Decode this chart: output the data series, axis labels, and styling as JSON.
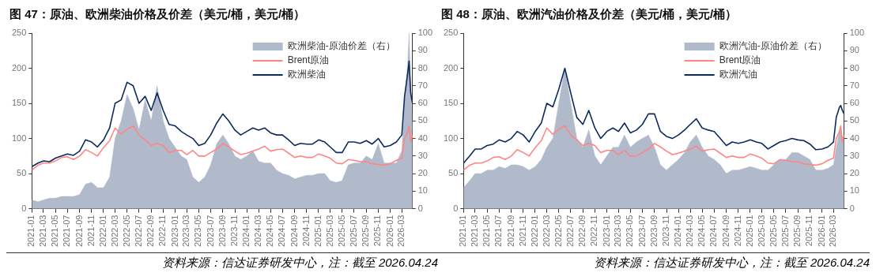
{
  "chart_data": [
    {
      "type": "line",
      "title": "图 47：原油、欧洲柴油价格及价差（美元/桶，美元/桶）",
      "annotations": [
        "资料来源：信达证券研发中心，注：截至 2026.04.24"
      ],
      "x": [
        "2021-01",
        "2021-02",
        "2021-03",
        "2021-04",
        "2021-05",
        "2021-06",
        "2021-07",
        "2021-08",
        "2021-09",
        "2021-10",
        "2021-11",
        "2021-12",
        "2022-01",
        "2022-02",
        "2022-03",
        "2022-04",
        "2022-05",
        "2022-06",
        "2022-07",
        "2022-08",
        "2022-09",
        "2022-10",
        "2022-11",
        "2022-12",
        "2023-01",
        "2023-02",
        "2023-03",
        "2023-04",
        "2023-05",
        "2023-06",
        "2023-07",
        "2023-08",
        "2023-09",
        "2023-10",
        "2023-11",
        "2023-12",
        "2024-01",
        "2024-02",
        "2024-03",
        "2024-04",
        "2024-05",
        "2024-06",
        "2024-07",
        "2024-08",
        "2024-09",
        "2024-10",
        "2024-11",
        "2024-12",
        "2025-01",
        "2025-02",
        "2025-03",
        "2025-04",
        "2025-05",
        "2025-06",
        "2025-07",
        "2025-08",
        "2025-09",
        "2025-10",
        "2025-11",
        "2025-12",
        "2026-01",
        "2026-02",
        "2026-03",
        "2026-03-15",
        "2026-04-01",
        "2026-04-07",
        "2026-04-15",
        "2026-04-24"
      ],
      "series": [
        {
          "name": "欧洲柴油-原油价差（右）",
          "type": "area",
          "axis": "y2",
          "color": "#b1bacb",
          "values": [
            5,
            4,
            5,
            6,
            6,
            7,
            7,
            7,
            8,
            14,
            15,
            12,
            12,
            18,
            40,
            50,
            65,
            57,
            45,
            62,
            50,
            70,
            50,
            40,
            35,
            30,
            28,
            18,
            15,
            18,
            25,
            37,
            42,
            37,
            30,
            28,
            30,
            33,
            27,
            26,
            26,
            22,
            20,
            19,
            17,
            18,
            19,
            19,
            20,
            20,
            16,
            15,
            16,
            25,
            26,
            26,
            30,
            28,
            37,
            26,
            26,
            26,
            33,
            60,
            85,
            100,
            70,
            45
          ]
        },
        {
          "name": "Brent原油",
          "type": "line",
          "color": "#ff8585",
          "values": [
            55,
            62,
            65,
            65,
            68,
            73,
            74,
            70,
            75,
            84,
            80,
            75,
            87,
            97,
            115,
            106,
            113,
            118,
            105,
            98,
            90,
            93,
            90,
            80,
            83,
            83,
            77,
            83,
            75,
            75,
            80,
            85,
            93,
            88,
            82,
            77,
            79,
            82,
            85,
            89,
            82,
            84,
            85,
            79,
            73,
            75,
            73,
            73,
            78,
            75,
            72,
            65,
            64,
            70,
            69,
            67,
            67,
            64,
            63,
            62,
            64,
            69,
            72,
            100,
            110,
            118,
            95,
            105
          ]
        },
        {
          "name": "欧洲柴油",
          "type": "line",
          "color": "#0d2a5e",
          "values": [
            60,
            65,
            68,
            67,
            72,
            75,
            78,
            76,
            82,
            98,
            95,
            88,
            98,
            115,
            150,
            155,
            180,
            175,
            150,
            160,
            140,
            165,
            140,
            120,
            118,
            110,
            105,
            100,
            90,
            93,
            105,
            122,
            135,
            125,
            112,
            105,
            110,
            115,
            112,
            115,
            108,
            105,
            105,
            98,
            90,
            93,
            92,
            92,
            98,
            95,
            88,
            80,
            80,
            95,
            95,
            93,
            97,
            92,
            100,
            88,
            90,
            95,
            105,
            160,
            195,
            210,
            165,
            150
          ]
        }
      ],
      "xlim": [
        "2021-01-01",
        "2026-04-24"
      ],
      "xticks": [
        "2021-01",
        "2021-03",
        "2021-05",
        "2021-07",
        "2021-09",
        "2021-11",
        "2022-01",
        "2022-03",
        "2022-05",
        "2022-07",
        "2022-09",
        "2022-11",
        "2023-01",
        "2023-03",
        "2023-05",
        "2023-07",
        "2023-09",
        "2023-11",
        "2024-01",
        "2024-03",
        "2024-05",
        "2024-07",
        "2024-09",
        "2024-11",
        "2025-01",
        "2025-03",
        "2025-05",
        "2025-07",
        "2025-09",
        "2025-11",
        "2026-01",
        "2026-03"
      ],
      "ylim": [
        0,
        250
      ],
      "yticks": [
        0,
        50,
        100,
        150,
        200,
        250
      ],
      "y2lim": [
        0,
        100
      ],
      "y2ticks": [
        0,
        10,
        20,
        30,
        40,
        50,
        60,
        70,
        80,
        90,
        100
      ],
      "legend": "top right",
      "marker": "none"
    },
    {
      "type": "line",
      "title": "图 48：原油、欧洲汽油价格及价差（美元/桶，美元/桶）",
      "annotations": [
        "资料来源：信达证券研发中心，注：截至 2026.04.24"
      ],
      "x": [
        "2021-01",
        "2021-02",
        "2021-03",
        "2021-04",
        "2021-05",
        "2021-06",
        "2021-07",
        "2021-08",
        "2021-09",
        "2021-10",
        "2021-11",
        "2021-12",
        "2022-01",
        "2022-02",
        "2022-03",
        "2022-04",
        "2022-05",
        "2022-06",
        "2022-07",
        "2022-08",
        "2022-09",
        "2022-10",
        "2022-11",
        "2022-12",
        "2023-01",
        "2023-02",
        "2023-03",
        "2023-04",
        "2023-05",
        "2023-06",
        "2023-07",
        "2023-08",
        "2023-09",
        "2023-10",
        "2023-11",
        "2023-12",
        "2024-01",
        "2024-02",
        "2024-03",
        "2024-04",
        "2024-05",
        "2024-06",
        "2024-07",
        "2024-08",
        "2024-09",
        "2024-10",
        "2024-11",
        "2024-12",
        "2025-01",
        "2025-02",
        "2025-03",
        "2025-04",
        "2025-05",
        "2025-06",
        "2025-07",
        "2025-08",
        "2025-09",
        "2025-10",
        "2025-11",
        "2025-12",
        "2026-01",
        "2026-02",
        "2026-03",
        "2026-03-15",
        "2026-04-01",
        "2026-04-07",
        "2026-04-15",
        "2026-04-24"
      ],
      "series": [
        {
          "name": "欧洲汽油-原油价差（右）",
          "type": "area",
          "axis": "y2",
          "color": "#b1bacb",
          "values": [
            12,
            16,
            20,
            20,
            22,
            22,
            24,
            23,
            25,
            25,
            24,
            22,
            24,
            28,
            35,
            40,
            60,
            80,
            60,
            40,
            35,
            45,
            30,
            25,
            30,
            35,
            35,
            42,
            35,
            38,
            40,
            42,
            35,
            25,
            22,
            25,
            28,
            32,
            38,
            42,
            35,
            30,
            28,
            25,
            20,
            22,
            22,
            23,
            24,
            23,
            22,
            22,
            25,
            28,
            28,
            32,
            32,
            30,
            28,
            22,
            22,
            23,
            25,
            35,
            45,
            45,
            40,
            40
          ]
        },
        {
          "name": "Brent原油",
          "type": "line",
          "color": "#ff8585",
          "values": [
            55,
            62,
            65,
            65,
            68,
            73,
            74,
            70,
            75,
            84,
            80,
            75,
            87,
            97,
            115,
            106,
            113,
            118,
            105,
            98,
            90,
            93,
            90,
            80,
            83,
            83,
            77,
            83,
            75,
            75,
            80,
            85,
            93,
            88,
            82,
            77,
            79,
            82,
            85,
            89,
            82,
            84,
            85,
            79,
            73,
            75,
            73,
            73,
            78,
            75,
            72,
            65,
            64,
            70,
            69,
            67,
            67,
            64,
            63,
            62,
            64,
            69,
            72,
            100,
            110,
            118,
            95,
            105
          ]
        },
        {
          "name": "欧洲汽油",
          "type": "line",
          "color": "#0d2a5e",
          "values": [
            65,
            75,
            85,
            85,
            90,
            92,
            98,
            95,
            100,
            110,
            105,
            95,
            110,
            122,
            150,
            145,
            170,
            200,
            165,
            130,
            120,
            140,
            115,
            100,
            110,
            115,
            110,
            122,
            108,
            112,
            120,
            135,
            135,
            110,
            103,
            100,
            105,
            112,
            120,
            128,
            115,
            112,
            110,
            100,
            90,
            95,
            93,
            95,
            98,
            95,
            93,
            85,
            90,
            95,
            97,
            100,
            98,
            97,
            92,
            84,
            85,
            88,
            95,
            130,
            145,
            147,
            140,
            135
          ]
        }
      ],
      "xlim": [
        "2021-01-01",
        "2026-04-24"
      ],
      "xticks": [
        "2021-01",
        "2021-03",
        "2021-05",
        "2021-07",
        "2021-09",
        "2021-11",
        "2022-01",
        "2022-03",
        "2022-05",
        "2022-07",
        "2022-09",
        "2022-11",
        "2023-01",
        "2023-03",
        "2023-05",
        "2023-07",
        "2023-09",
        "2023-11",
        "2024-01",
        "2024-03",
        "2024-05",
        "2024-07",
        "2024-09",
        "2024-11",
        "2025-01",
        "2025-03",
        "2025-05",
        "2025-07",
        "2025-09",
        "2025-11",
        "2026-01",
        "2026-03"
      ],
      "ylim": [
        0,
        250
      ],
      "yticks": [
        0,
        50,
        100,
        150,
        200,
        250
      ],
      "y2lim": [
        0,
        100
      ],
      "y2ticks": [
        0,
        10,
        20,
        30,
        40,
        50,
        60,
        70,
        80,
        90,
        100
      ],
      "legend": "top right",
      "marker": "none"
    }
  ]
}
